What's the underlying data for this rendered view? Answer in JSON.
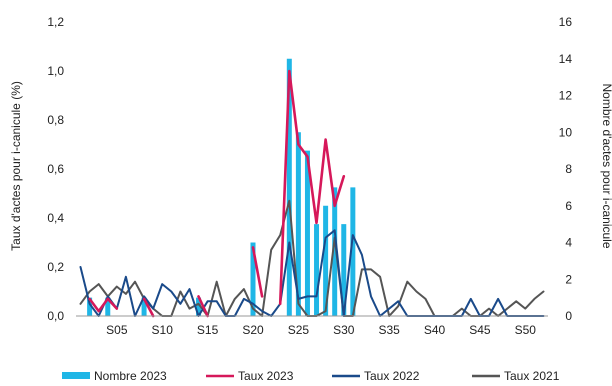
{
  "chart_data": {
    "type": "bar",
    "ylabel": "Taux d'actes pour i-canicule (%)",
    "y2label": "Nombre d'actes pour i-canicule",
    "ylim": [
      0,
      1.2
    ],
    "y2lim": [
      0,
      16
    ],
    "yticks": [
      "0,0",
      "0,2",
      "0,4",
      "0,6",
      "0,8",
      "1,0",
      "1,2"
    ],
    "y2ticks": [
      "0",
      "2",
      "4",
      "6",
      "8",
      "10",
      "12",
      "14",
      "16"
    ],
    "x": [
      1,
      2,
      3,
      4,
      5,
      6,
      7,
      8,
      9,
      10,
      11,
      12,
      13,
      14,
      15,
      16,
      17,
      18,
      19,
      20,
      21,
      22,
      23,
      24,
      25,
      26,
      27,
      28,
      29,
      30,
      31,
      32,
      33,
      34,
      35,
      36,
      37,
      38,
      39,
      40,
      41,
      42,
      43,
      44,
      45,
      46,
      47,
      48,
      49,
      50,
      51,
      52
    ],
    "xtick_weeks": [
      5,
      10,
      15,
      20,
      25,
      30,
      35,
      40,
      45,
      50
    ],
    "xtick_labels": [
      "S05",
      "S10",
      "S15",
      "S20",
      "S25",
      "S30",
      "S35",
      "S40",
      "S45",
      "S50"
    ],
    "legend": {
      "placement": "bottom"
    },
    "series": [
      {
        "name": "Nombre 2023",
        "kind": "bar",
        "axis": "right",
        "color": "#1FB6E6",
        "values": [
          0,
          1,
          0,
          1,
          0,
          0,
          0,
          1,
          0,
          0,
          0,
          0,
          0,
          1,
          0,
          0,
          0,
          0,
          0,
          4,
          0,
          0,
          0,
          14,
          10,
          9,
          5,
          6,
          7,
          5,
          7,
          0,
          0,
          0,
          0,
          0,
          0,
          0,
          0,
          0,
          0,
          0,
          0,
          0,
          0,
          0,
          0,
          0,
          0,
          0,
          0,
          0
        ]
      },
      {
        "name": "Taux 2023",
        "kind": "line",
        "axis": "left",
        "color": "#D6185A",
        "values": [
          null,
          0.07,
          0.02,
          0.07,
          0.03,
          null,
          null,
          0.07,
          0,
          null,
          null,
          null,
          null,
          0.08,
          0,
          null,
          null,
          null,
          null,
          0.28,
          0.08,
          null,
          0.05,
          1.0,
          0.7,
          0.65,
          0.38,
          0.72,
          0.45,
          0.57,
          null,
          null,
          null,
          null,
          null,
          null,
          null,
          null,
          null,
          null,
          null,
          null,
          null,
          null,
          null,
          null,
          null,
          null,
          null,
          null,
          null,
          null
        ]
      },
      {
        "name": "Taux 2022",
        "kind": "line",
        "axis": "left",
        "color": "#1A4A8A",
        "values": [
          0.2,
          0.05,
          0,
          0.08,
          0.03,
          0.16,
          0,
          0.08,
          0.03,
          0.13,
          0.1,
          0.05,
          0.11,
          0,
          0.06,
          0.06,
          0,
          0,
          0.07,
          0.05,
          0.02,
          0,
          0.05,
          0.3,
          0.07,
          0.08,
          0.08,
          0.32,
          0.35,
          0,
          0.33,
          0.25,
          0.08,
          0,
          0.03,
          0.06,
          0,
          0,
          0,
          0,
          0,
          0,
          0,
          0.07,
          0,
          0,
          0.07,
          0,
          0,
          0,
          0,
          0
        ]
      },
      {
        "name": "Taux 2021",
        "kind": "line",
        "axis": "left",
        "color": "#555555",
        "values": [
          0.05,
          0.1,
          0.13,
          0.08,
          0.12,
          0.09,
          0.14,
          0.07,
          0.03,
          0,
          0,
          0.1,
          0.03,
          0.05,
          0,
          0.14,
          0,
          0.07,
          0.11,
          0.03,
          0,
          0.27,
          0.33,
          0.47,
          0.05,
          0,
          0,
          0.02,
          0.32,
          0,
          0,
          0.19,
          0.19,
          0.16,
          0,
          0.04,
          0.14,
          0.1,
          0.07,
          0,
          0,
          0,
          0.03,
          0,
          0,
          0.03,
          0,
          0.03,
          0.06,
          0.03,
          0.07,
          0.1
        ]
      }
    ]
  }
}
